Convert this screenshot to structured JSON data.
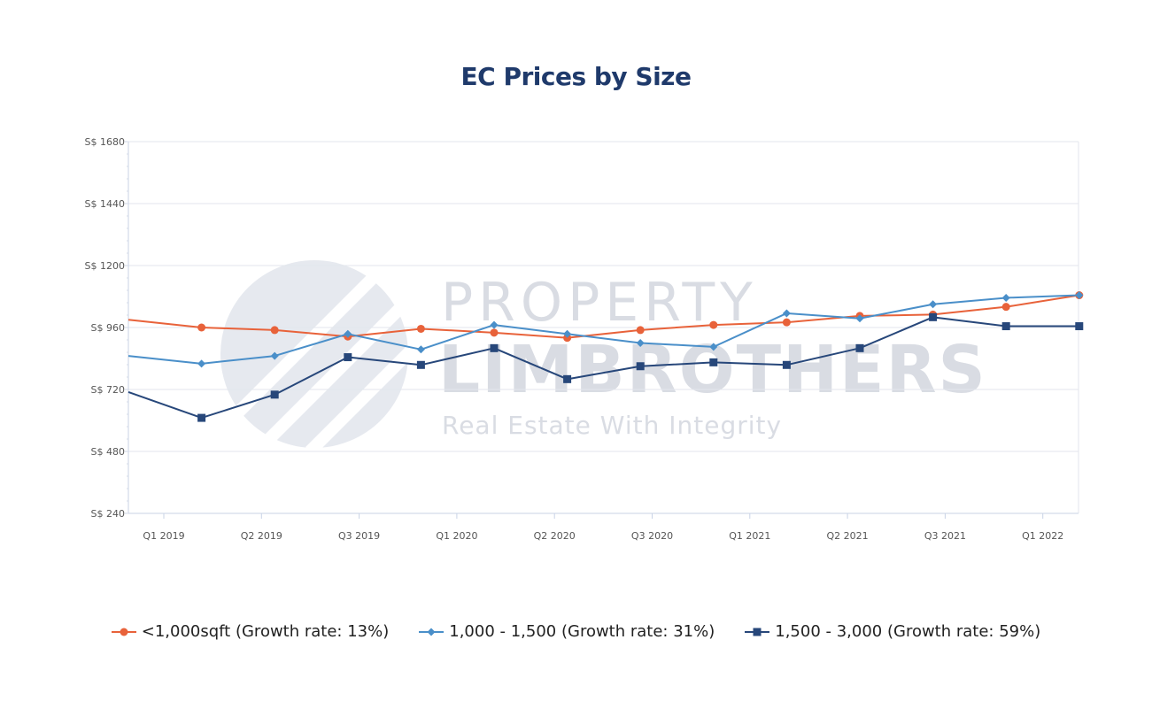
{
  "chart_data": {
    "type": "line",
    "title": "EC Prices by Size",
    "xlabel": "",
    "ylabel": "",
    "x_tick_labels": [
      "Q1 2019",
      "Q2 2019",
      "Q3 2019",
      "Q1 2020",
      "Q2 2020",
      "Q3 2020",
      "Q1 2021",
      "Q2 2021",
      "Q3 2021",
      "Q1 2022"
    ],
    "y_tick_labels": [
      "S$ 240",
      "S$ 480",
      "S$ 720",
      "S$ 960",
      "S$ 1200",
      "S$ 1440",
      "S$ 1680"
    ],
    "ylim": [
      240,
      1680
    ],
    "y_ticks": [
      240,
      480,
      720,
      960,
      1200,
      1440,
      1680
    ],
    "grid": true,
    "legend_position": "bottom",
    "series": [
      {
        "name": "<1,000sqft (Growth rate: 13%)",
        "color": "#e8623a",
        "marker": "circle",
        "values": [
          990,
          960,
          950,
          925,
          955,
          940,
          920,
          950,
          970,
          980,
          1005,
          1010,
          1040,
          1085
        ]
      },
      {
        "name": "1,000 - 1,500 (Growth rate: 31%)",
        "color": "#4a8fc9",
        "marker": "diamond",
        "values": [
          850,
          820,
          850,
          935,
          875,
          970,
          935,
          900,
          885,
          1015,
          995,
          1050,
          1075,
          1085
        ]
      },
      {
        "name": "1,500 - 3,000 (Growth rate: 59%)",
        "color": "#27477a",
        "marker": "square",
        "values": [
          710,
          610,
          700,
          845,
          815,
          880,
          760,
          810,
          825,
          815,
          880,
          1000,
          965,
          965
        ]
      }
    ]
  },
  "watermark": {
    "line1": "PROPERTY",
    "line2": "LIMBROTHERS",
    "tagline": "Real Estate With Integrity"
  }
}
